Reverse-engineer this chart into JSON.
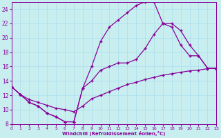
{
  "xlabel": "Windchill (Refroidissement éolien,°C)",
  "bg_color": "#c8eef0",
  "line_color": "#880099",
  "grid_color": "#aaddee",
  "xlim": [
    0,
    23
  ],
  "ylim": [
    8,
    25
  ],
  "xticks": [
    0,
    1,
    2,
    3,
    4,
    5,
    6,
    7,
    8,
    9,
    10,
    11,
    12,
    13,
    14,
    15,
    16,
    17,
    18,
    19,
    20,
    21,
    22,
    23
  ],
  "yticks": [
    8,
    10,
    12,
    14,
    16,
    18,
    20,
    22,
    24
  ],
  "curve1_x": [
    0,
    1,
    2,
    3,
    4,
    5,
    6,
    7,
    8,
    9,
    10,
    11,
    12,
    13,
    14,
    15,
    16,
    17,
    18,
    19,
    20,
    21,
    22,
    23
  ],
  "curve1_y": [
    13.2,
    12.1,
    11.0,
    10.5,
    9.5,
    9.0,
    8.3,
    8.3,
    13.0,
    16.0,
    19.5,
    21.5,
    22.5,
    23.5,
    24.5,
    25.0,
    25.0,
    22.0,
    21.5,
    19.0,
    17.5,
    17.5,
    15.8,
    15.7
  ],
  "curve2_x": [
    0,
    1,
    2,
    3,
    4,
    5,
    6,
    7,
    8,
    9,
    10,
    11,
    12,
    13,
    14,
    15,
    16,
    17,
    18,
    19,
    20,
    21,
    22,
    23
  ],
  "curve2_y": [
    13.2,
    12.1,
    11.0,
    10.5,
    9.5,
    9.0,
    8.3,
    8.3,
    13.0,
    14.0,
    15.5,
    16.0,
    16.5,
    16.5,
    17.0,
    18.5,
    20.5,
    22.0,
    22.0,
    21.0,
    19.0,
    17.5,
    15.8,
    15.7
  ],
  "curve3_x": [
    0,
    1,
    2,
    3,
    4,
    5,
    6,
    7,
    8,
    9,
    10,
    11,
    12,
    13,
    14,
    15,
    16,
    17,
    18,
    19,
    20,
    21,
    22,
    23
  ],
  "curve3_y": [
    13.2,
    12.1,
    11.4,
    11.0,
    10.6,
    10.2,
    10.0,
    9.7,
    10.5,
    11.5,
    12.0,
    12.5,
    13.0,
    13.5,
    13.8,
    14.2,
    14.5,
    14.8,
    15.0,
    15.2,
    15.4,
    15.5,
    15.7,
    15.8
  ],
  "markersize": 2.5,
  "linewidth": 0.9
}
